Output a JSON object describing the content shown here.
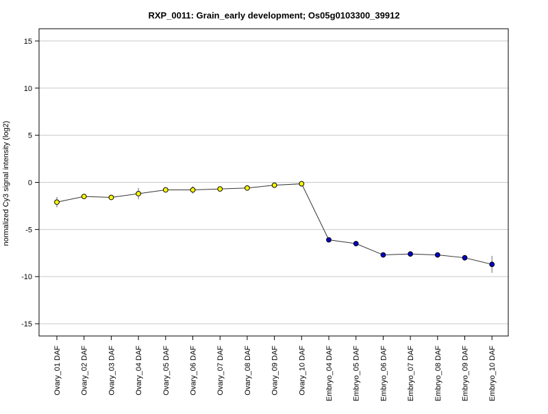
{
  "chart_data": {
    "type": "line",
    "title": "RXP_0011: Grain_early development; Os05g0103300_39912",
    "xlabel": "",
    "ylabel": "normalized Cy3 signal intensity (log2)",
    "ylim": [
      -16.3,
      16.3
    ],
    "yticks": [
      -15,
      -10,
      -5,
      0,
      5,
      10,
      15
    ],
    "grid": true,
    "legend": "none",
    "categories": [
      "Ovary_01 DAF",
      "Ovary_02 DAF",
      "Ovary_03 DAF",
      "Ovary_04 DAF",
      "Ovary_05 DAF",
      "Ovary_06 DAF",
      "Ovary_07 DAF",
      "Ovary_08 DAF",
      "Ovary_09 DAF",
      "Ovary_10 DAF",
      "Embryo_04 DAF",
      "Embryo_05 DAF",
      "Embryo_06 DAF",
      "Embryo_07 DAF",
      "Embryo_08 DAF",
      "Embryo_09 DAF",
      "Embryo_10 DAF"
    ],
    "series": [
      {
        "values": [
          -2.1,
          -1.5,
          -1.6,
          -1.2,
          -0.8,
          -0.8,
          -0.7,
          -0.6,
          -0.3,
          -0.15,
          -6.1,
          -6.5,
          -7.7,
          -7.6,
          -7.7,
          -8.0,
          -8.7
        ],
        "error": [
          0.55,
          0.15,
          0.2,
          0.6,
          0.2,
          0.4,
          0.15,
          0.15,
          0.15,
          0.2,
          0.15,
          0.2,
          0.15,
          0.15,
          0.15,
          0.3,
          0.9
        ],
        "point_colors": [
          "#ffff00",
          "#ffff00",
          "#ffff00",
          "#ffff00",
          "#ffff00",
          "#ffff00",
          "#ffff00",
          "#ffff00",
          "#ffff00",
          "#ffff00",
          "#0000cd",
          "#0000cd",
          "#0000cd",
          "#0000cd",
          "#0000cd",
          "#0000cd",
          "#0000cd"
        ]
      }
    ],
    "colors": {
      "line": "#333333",
      "grid": "#c8c8c8",
      "frame": "#000000",
      "error_bar": "#808080",
      "ovary_point": "#ffff00",
      "embryo_point": "#0000cd",
      "marker_edge": "#000000"
    }
  }
}
